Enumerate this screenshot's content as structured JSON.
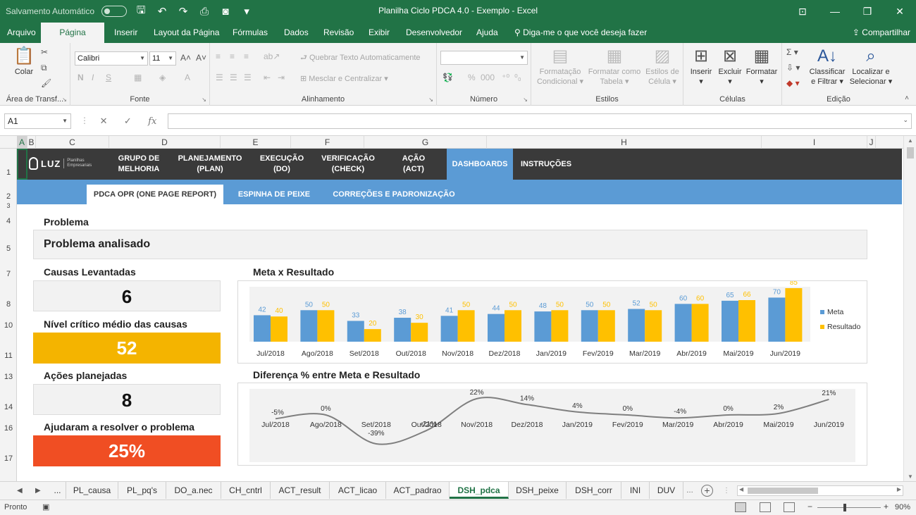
{
  "window": {
    "title": "Planilha Ciclo PDCA 4.0 - Exemplo  -  Excel",
    "autosave_label": "Salvamento Automático",
    "autosave_state": "off"
  },
  "ribbon_tabs": [
    "Arquivo",
    "Página Inicial",
    "Inserir",
    "Layout da Página",
    "Fórmulas",
    "Dados",
    "Revisão",
    "Exibir",
    "Desenvolvedor",
    "Ajuda"
  ],
  "active_ribbon_tab": "Página Inicial",
  "tell_me": "Diga-me o que você deseja fazer",
  "share": "Compartilhar",
  "ribbon": {
    "clipboard": {
      "label": "Área de Transf...",
      "paste": "Colar"
    },
    "font": {
      "label": "Fonte",
      "name": "Calibri",
      "size": "11",
      "bold": "N",
      "italic": "I",
      "underline": "S"
    },
    "alignment": {
      "label": "Alinhamento",
      "wrap": "Quebrar Texto Automaticamente",
      "merge": "Mesclar e Centralizar"
    },
    "number": {
      "label": "Número",
      "format": "",
      "pct": "%",
      "thousands": "000"
    },
    "styles": {
      "label": "Estilos",
      "conditional_1": "Formatação",
      "conditional_2": "Condicional",
      "table_1": "Formatar como",
      "table_2": "Tabela",
      "cell_1": "Estilos de",
      "cell_2": "Célula"
    },
    "cells": {
      "label": "Células",
      "insert": "Inserir",
      "delete": "Excluir",
      "format": "Formatar"
    },
    "editing": {
      "label": "Edição",
      "sort_1": "Classificar",
      "sort_2": "e Filtrar",
      "find_1": "Localizar e",
      "find_2": "Selecionar"
    }
  },
  "formula_bar": {
    "name_box": "A1",
    "fx": "fx",
    "formula": ""
  },
  "columns": [
    "A",
    "B",
    "C",
    "D",
    "E",
    "F",
    "G",
    "H",
    "I",
    "J"
  ],
  "rows": [
    "1",
    "2",
    "3",
    "4",
    "5",
    "7",
    "8",
    "10",
    "11",
    "13",
    "14",
    "16",
    "17"
  ],
  "dashboard": {
    "logo": {
      "name": "LUZ",
      "sub1": "Planilhas",
      "sub2": "Empresariais"
    },
    "nav": [
      {
        "line1": "GRUPO DE",
        "line2": "MELHORIA"
      },
      {
        "line1": "PLANEJAMENTO",
        "line2": "(PLAN)"
      },
      {
        "line1": "EXECUÇÃO",
        "line2": "(DO)"
      },
      {
        "line1": "VERIFICAÇÃO",
        "line2": "(CHECK)"
      },
      {
        "line1": "AÇÃO",
        "line2": "(ACT)"
      },
      {
        "line1": "DASHBOARDS",
        "line2": ""
      },
      {
        "line1": "INSTRUÇÕES",
        "line2": ""
      }
    ],
    "active_nav": "DASHBOARDS",
    "subnav": [
      "PDCA OPR (ONE PAGE REPORT)",
      "ESPINHA DE PEIXE",
      "CORREÇÕES E PADRONIZAÇÃO"
    ],
    "active_subnav": "PDCA OPR (ONE PAGE REPORT)",
    "problem_label": "Problema",
    "problem_value": "Problema analisado",
    "kpis": [
      {
        "label": "Causas Levantadas",
        "value": "6"
      },
      {
        "label": "Nível crítico médio das causas",
        "value": "52"
      },
      {
        "label": "Ações planejadas",
        "value": "8"
      },
      {
        "label": "Ajudaram a resolver o problema",
        "value": "25%"
      }
    ],
    "colors": {
      "meta": "#5b9bd5",
      "resultado": "#ffc000",
      "nav_bg": "#3a3a3a",
      "accent": "#5b9bd5",
      "kpi_gold": "#f4b400",
      "kpi_red": "#f04e23"
    }
  },
  "chart_data": [
    {
      "type": "bar",
      "title": "Meta x Resultado",
      "categories": [
        "Jul/2018",
        "Ago/2018",
        "Set/2018",
        "Out/2018",
        "Nov/2018",
        "Dez/2018",
        "Jan/2019",
        "Fev/2019",
        "Mar/2019",
        "Abr/2019",
        "Mai/2019",
        "Jun/2019"
      ],
      "series": [
        {
          "name": "Meta",
          "values": [
            42,
            50,
            33,
            38,
            41,
            44,
            48,
            50,
            52,
            60,
            65,
            70
          ]
        },
        {
          "name": "Resultado",
          "values": [
            40,
            50,
            20,
            30,
            50,
            50,
            50,
            50,
            50,
            60,
            66,
            85
          ]
        }
      ],
      "ylim": [
        0,
        85
      ],
      "legend": "right",
      "grid": false
    },
    {
      "type": "line",
      "title": "Diferença % entre Meta e Resultado",
      "categories": [
        "Jul/2018",
        "Ago/2018",
        "Set/2018",
        "Out/2018",
        "Nov/2018",
        "Dez/2018",
        "Jan/2019",
        "Fev/2019",
        "Mar/2019",
        "Abr/2019",
        "Mai/2019",
        "Jun/2019"
      ],
      "values": [
        -5,
        0,
        -39,
        -21,
        22,
        14,
        4,
        0,
        -4,
        0,
        2,
        21
      ],
      "labels": [
        "-5%",
        "0%",
        "-39%",
        "-21%",
        "22%",
        "14%",
        "4%",
        "0%",
        "-4%",
        "0%",
        "2%",
        "21%"
      ],
      "ylim": [
        -45,
        25
      ],
      "grid": false
    }
  ],
  "sheet_tabs": [
    "...",
    "PL_causa",
    "PL_pq's",
    "DO_a.nec",
    "CH_cntrl",
    "ACT_result",
    "ACT_licao",
    "ACT_padrao",
    "DSH_pdca",
    "DSH_peixe",
    "DSH_corr",
    "INI",
    "DUV"
  ],
  "active_sheet": "DSH_pdca",
  "status": {
    "ready": "Pronto",
    "zoom": "90%"
  }
}
